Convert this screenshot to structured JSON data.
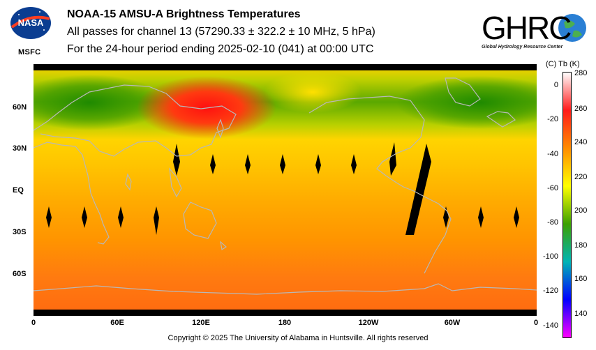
{
  "header": {
    "msfc_label": "MSFC",
    "title": "NOAA-15 AMSU-A Brightness Temperatures",
    "subtitle": "All passes for channel 13 (57290.33 ± 322.2 ± 10 MHz, 5 hPa)",
    "period": "For the 24-hour period ending 2025-02-10 (041) at 00:00 UTC",
    "nasa_logo_text": "NASA",
    "ghrc_logo_text": "GHRC",
    "ghrc_subtitle": "Global Hydrology Resource Center"
  },
  "map": {
    "lat_labels": [
      "60N",
      "30N",
      "EQ",
      "30S",
      "60S"
    ],
    "lon_labels": [
      "0",
      "60E",
      "120E",
      "180",
      "120W",
      "60W",
      "0"
    ],
    "colors": {
      "hot": "#ff1a10",
      "warm": "#ffc800",
      "mid": "#ffd800",
      "cool": "#9ac800",
      "cold": "#3c9a00",
      "south": "#ff7a10",
      "coast": "#b8b8b8",
      "gap": "#000000"
    }
  },
  "colorbar": {
    "header": "(C)  Tb  (K)",
    "celsius_ticks": [
      "0",
      "-20",
      "-40",
      "-60",
      "-80",
      "-100",
      "-120",
      "-140"
    ],
    "kelvin_ticks": [
      "280",
      "260",
      "240",
      "220",
      "200",
      "180",
      "160",
      "140"
    ],
    "stops": [
      "#ffffff",
      "#ff1a1a",
      "#ff8c00",
      "#ffff00",
      "#3ca000",
      "#00b4b4",
      "#0000ff",
      "#ff00ff"
    ]
  },
  "footer": {
    "copyright": "Copyright © 2025 The University of Alabama in Huntsville.  All rights reserved"
  }
}
